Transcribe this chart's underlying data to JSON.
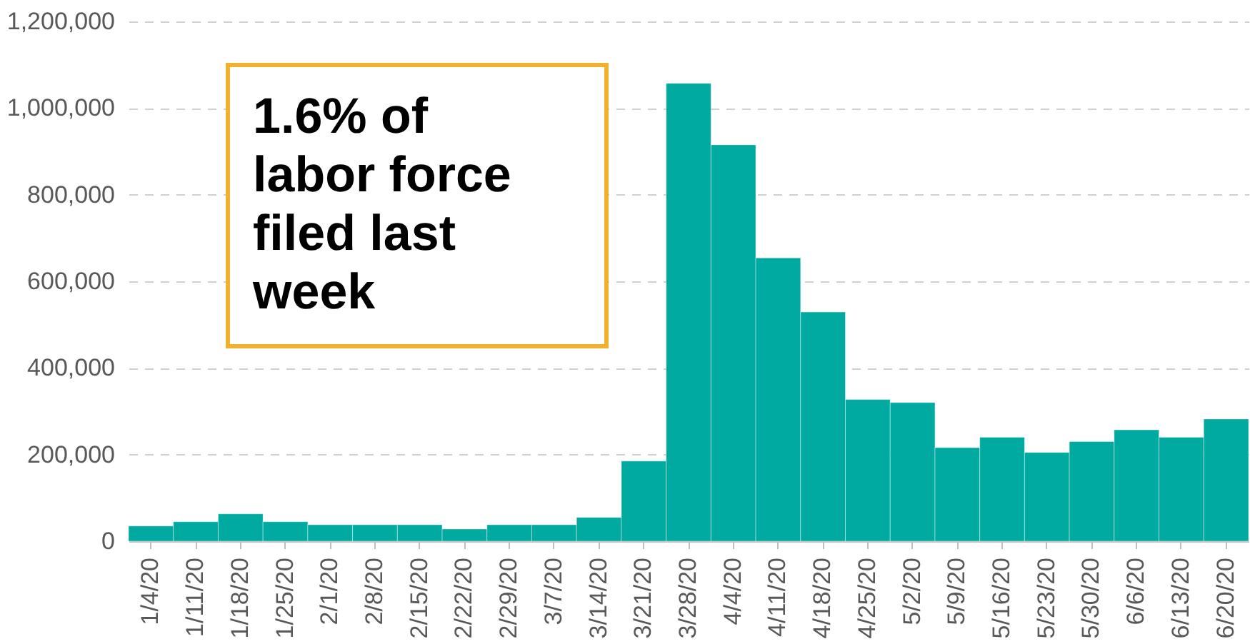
{
  "chart_data": {
    "type": "bar",
    "categories": [
      "1/4/20",
      "1/11/20",
      "1/18/20",
      "1/25/20",
      "2/1/20",
      "2/8/20",
      "2/15/20",
      "2/22/20",
      "2/29/20",
      "3/7/20",
      "3/14/20",
      "3/21/20",
      "3/28/20",
      "4/4/20",
      "4/11/20",
      "4/18/20",
      "4/25/20",
      "5/2/20",
      "5/9/20",
      "5/16/20",
      "5/23/20",
      "5/30/20",
      "6/6/20",
      "6/13/20",
      "6/20/20"
    ],
    "values": [
      35000,
      45000,
      63000,
      45000,
      38000,
      38000,
      38000,
      28000,
      38000,
      38000,
      55000,
      185000,
      1057000,
      915000,
      654000,
      529000,
      327000,
      320000,
      216000,
      240000,
      205000,
      230000,
      257000,
      240000,
      282000
    ],
    "color": "#00aaa0",
    "ylim": [
      0,
      1200000
    ],
    "yticks": [
      {
        "value": 0,
        "label": "0"
      },
      {
        "value": 200000,
        "label": "200,000"
      },
      {
        "value": 400000,
        "label": "400,000"
      },
      {
        "value": 600000,
        "label": "600,000"
      },
      {
        "value": 800000,
        "label": "800,000"
      },
      {
        "value": 1000000,
        "label": "1,000,000"
      },
      {
        "value": 1200000,
        "label": "1,200,000"
      }
    ],
    "grid": "y",
    "annotations": [
      "1.6% of\nlabor force\nfiled last\nweek"
    ]
  }
}
